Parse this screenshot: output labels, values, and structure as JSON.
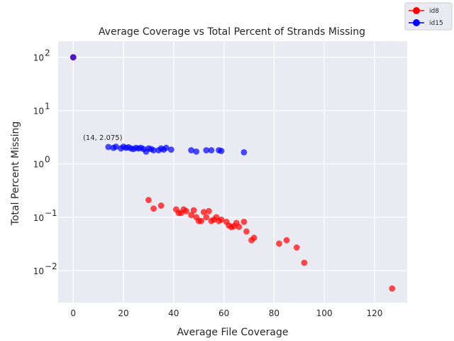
{
  "chart_data": {
    "type": "scatter",
    "title": "Average Coverage vs Total Percent of Strands Missing",
    "xlabel": "Average File Coverage",
    "ylabel": "Total Percent Missing",
    "xlim": [
      -6,
      133
    ],
    "ylim": [
      0.0025,
      200
    ],
    "yscale": "log",
    "grid": true,
    "legend_placement": "top-right (outside)",
    "x_ticks": [
      0,
      20,
      40,
      60,
      80,
      100,
      120
    ],
    "y_ticks": [
      {
        "value": 0.01,
        "base": "10",
        "exp": "−2"
      },
      {
        "value": 0.1,
        "base": "10",
        "exp": "−1"
      },
      {
        "value": 1,
        "base": "10",
        "exp": "0"
      },
      {
        "value": 10,
        "base": "10",
        "exp": "1"
      },
      {
        "value": 100,
        "base": "10",
        "exp": "2"
      }
    ],
    "annotation": {
      "text": "(14, 2.075)",
      "x": 14,
      "y": 2.075
    },
    "series": [
      {
        "name": "id8",
        "color": "#ff0000",
        "points": [
          [
            0,
            100
          ],
          [
            30,
            0.21
          ],
          [
            32,
            0.145
          ],
          [
            35,
            0.165
          ],
          [
            41,
            0.14
          ],
          [
            42,
            0.12
          ],
          [
            43,
            0.12
          ],
          [
            44,
            0.14
          ],
          [
            45,
            0.13
          ],
          [
            47,
            0.11
          ],
          [
            48,
            0.135
          ],
          [
            49,
            0.1
          ],
          [
            50,
            0.085
          ],
          [
            51,
            0.085
          ],
          [
            52,
            0.125
          ],
          [
            53,
            0.1
          ],
          [
            54,
            0.13
          ],
          [
            55,
            0.085
          ],
          [
            56,
            0.09
          ],
          [
            57,
            0.1
          ],
          [
            58,
            0.085
          ],
          [
            59,
            0.09
          ],
          [
            61,
            0.082
          ],
          [
            62,
            0.07
          ],
          [
            63,
            0.065
          ],
          [
            64,
            0.068
          ],
          [
            65,
            0.078
          ],
          [
            66,
            0.066
          ],
          [
            68,
            0.082
          ],
          [
            69,
            0.054
          ],
          [
            71,
            0.037
          ],
          [
            72,
            0.041
          ],
          [
            82,
            0.032
          ],
          [
            85,
            0.037
          ],
          [
            89,
            0.027
          ],
          [
            92,
            0.014
          ],
          [
            127,
            0.0046
          ]
        ]
      },
      {
        "name": "id15",
        "color": "#0000ff",
        "points": [
          [
            0,
            100
          ],
          [
            14,
            2.075
          ],
          [
            16,
            2.0
          ],
          [
            17,
            2.1
          ],
          [
            19,
            1.95
          ],
          [
            20,
            2.1
          ],
          [
            21,
            2.0
          ],
          [
            22,
            2.05
          ],
          [
            23,
            1.95
          ],
          [
            24,
            1.9
          ],
          [
            25,
            2.0
          ],
          [
            26,
            1.95
          ],
          [
            27,
            2.0
          ],
          [
            28,
            1.9
          ],
          [
            29,
            1.7
          ],
          [
            30,
            1.95
          ],
          [
            31,
            1.9
          ],
          [
            32,
            1.8
          ],
          [
            34,
            1.8
          ],
          [
            35,
            1.95
          ],
          [
            36,
            1.85
          ],
          [
            37,
            2.0
          ],
          [
            39,
            1.85
          ],
          [
            47,
            1.8
          ],
          [
            49,
            1.7
          ],
          [
            53,
            1.8
          ],
          [
            55,
            1.8
          ],
          [
            58,
            1.8
          ],
          [
            59,
            1.75
          ],
          [
            68,
            1.65
          ]
        ]
      }
    ]
  }
}
